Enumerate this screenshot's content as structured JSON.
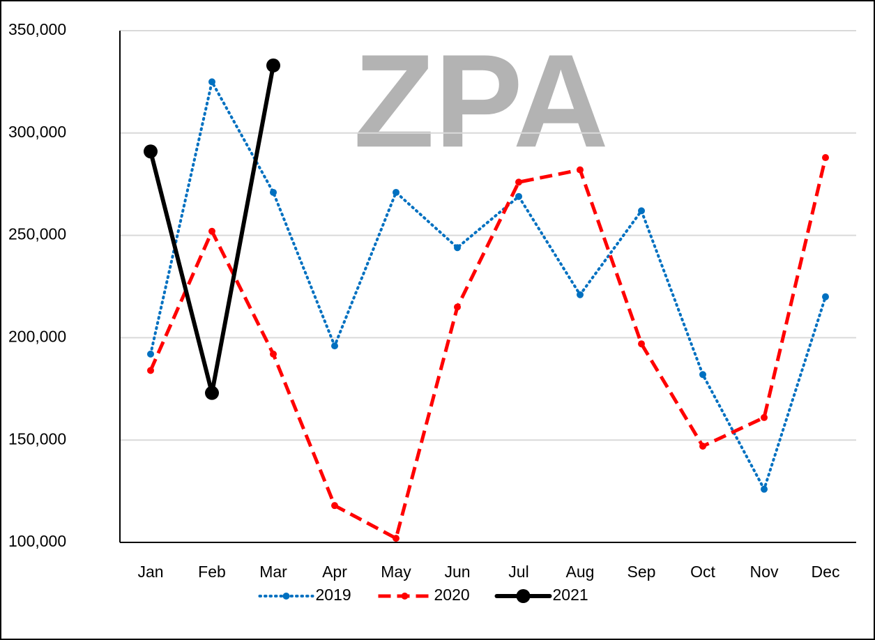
{
  "chart_data": {
    "type": "line",
    "watermark": "ZPA",
    "categories": [
      "Jan",
      "Feb",
      "Mar",
      "Apr",
      "May",
      "Jun",
      "Jul",
      "Aug",
      "Sep",
      "Oct",
      "Nov",
      "Dec"
    ],
    "series": [
      {
        "name": "2019",
        "color": "#0070c0",
        "line_style": "dotted",
        "marker": "small",
        "values": [
          192000,
          325000,
          271000,
          196000,
          271000,
          244000,
          269000,
          221000,
          262000,
          182000,
          126000,
          220000
        ]
      },
      {
        "name": "2020",
        "color": "#ff0000",
        "line_style": "dashed",
        "marker": "small",
        "values": [
          184000,
          252000,
          192000,
          118000,
          102000,
          215000,
          276000,
          282000,
          197000,
          147000,
          161000,
          288000
        ]
      },
      {
        "name": "2021",
        "color": "#000000",
        "line_style": "solid",
        "marker": "large",
        "values": [
          291000,
          173000,
          333000,
          null,
          null,
          null,
          null,
          null,
          null,
          null,
          null,
          null
        ]
      }
    ],
    "ylim": [
      100000,
      350000
    ],
    "yticks": [
      {
        "value": 100000,
        "label": "100,000"
      },
      {
        "value": 150000,
        "label": "150,000"
      },
      {
        "value": 200000,
        "label": "200,000"
      },
      {
        "value": 250000,
        "label": "250,000"
      },
      {
        "value": 300000,
        "label": "300,000"
      },
      {
        "value": 350000,
        "label": "350,000"
      }
    ],
    "grid": true,
    "legend": "bottom"
  }
}
